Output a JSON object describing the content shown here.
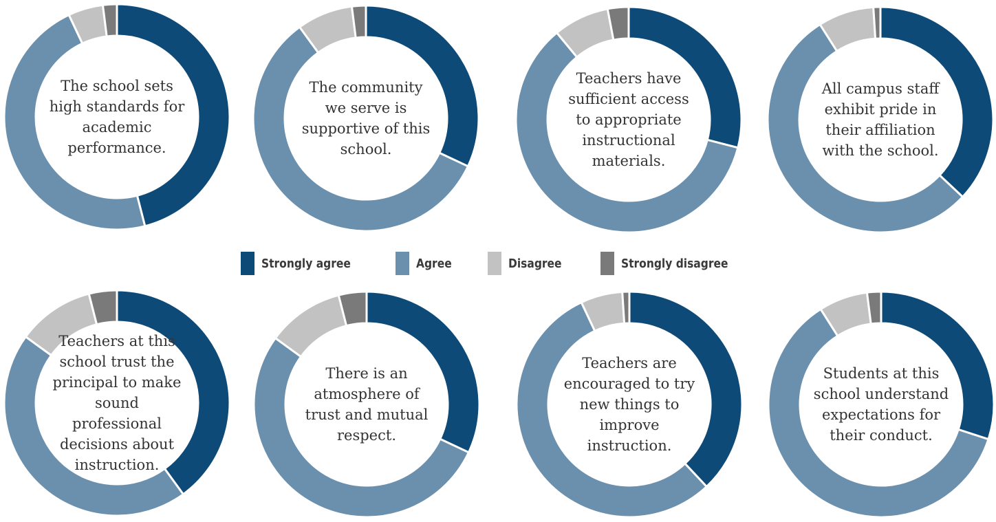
{
  "legend": [
    {
      "label": "Strongly agree",
      "color": "#0e4a77"
    },
    {
      "label": "Agree",
      "color": "#6b90ae"
    },
    {
      "label": "Disagree",
      "color": "#c2c2c2"
    },
    {
      "label": "Strongly disagree",
      "color": "#7a7a7a"
    }
  ],
  "chart_data": [
    {
      "type": "pie",
      "title": "The school sets high standards for academic performance.",
      "categories": [
        "Strongly agree",
        "Agree",
        "Disagree",
        "Strongly disagree"
      ],
      "values": [
        46,
        47,
        5,
        2
      ]
    },
    {
      "type": "pie",
      "title": "The community we serve is supportive of this school.",
      "categories": [
        "Strongly agree",
        "Agree",
        "Disagree",
        "Strongly disagree"
      ],
      "values": [
        32,
        58,
        8,
        2
      ]
    },
    {
      "type": "pie",
      "title": "Teachers have sufficient access to appropriate instructional materials.",
      "categories": [
        "Strongly agree",
        "Agree",
        "Disagree",
        "Strongly disagree"
      ],
      "values": [
        29,
        60,
        8,
        3
      ]
    },
    {
      "type": "pie",
      "title": "All campus staff exhibit pride in their affiliation with the school.",
      "categories": [
        "Strongly agree",
        "Agree",
        "Disagree",
        "Strongly disagree"
      ],
      "values": [
        37,
        54,
        8,
        1
      ]
    },
    {
      "type": "pie",
      "title": "Teachers at this school trust the principal to make sound professional decisions about instruction.",
      "categories": [
        "Strongly agree",
        "Agree",
        "Disagree",
        "Strongly disagree"
      ],
      "values": [
        40,
        45,
        11,
        4
      ]
    },
    {
      "type": "pie",
      "title": "There is an atmosphere of trust and mutual respect.",
      "categories": [
        "Strongly agree",
        "Agree",
        "Disagree",
        "Strongly disagree"
      ],
      "values": [
        32,
        53,
        11,
        4
      ]
    },
    {
      "type": "pie",
      "title": "Teachers are encouraged to try new things to improve instruction.",
      "categories": [
        "Strongly agree",
        "Agree",
        "Disagree",
        "Strongly disagree"
      ],
      "values": [
        38,
        55,
        6,
        1
      ]
    },
    {
      "type": "pie",
      "title": "Students at this school understand expectations for their conduct.",
      "categories": [
        "Strongly agree",
        "Agree",
        "Disagree",
        "Strongly disagree"
      ],
      "values": [
        30,
        61,
        7,
        2
      ]
    }
  ]
}
